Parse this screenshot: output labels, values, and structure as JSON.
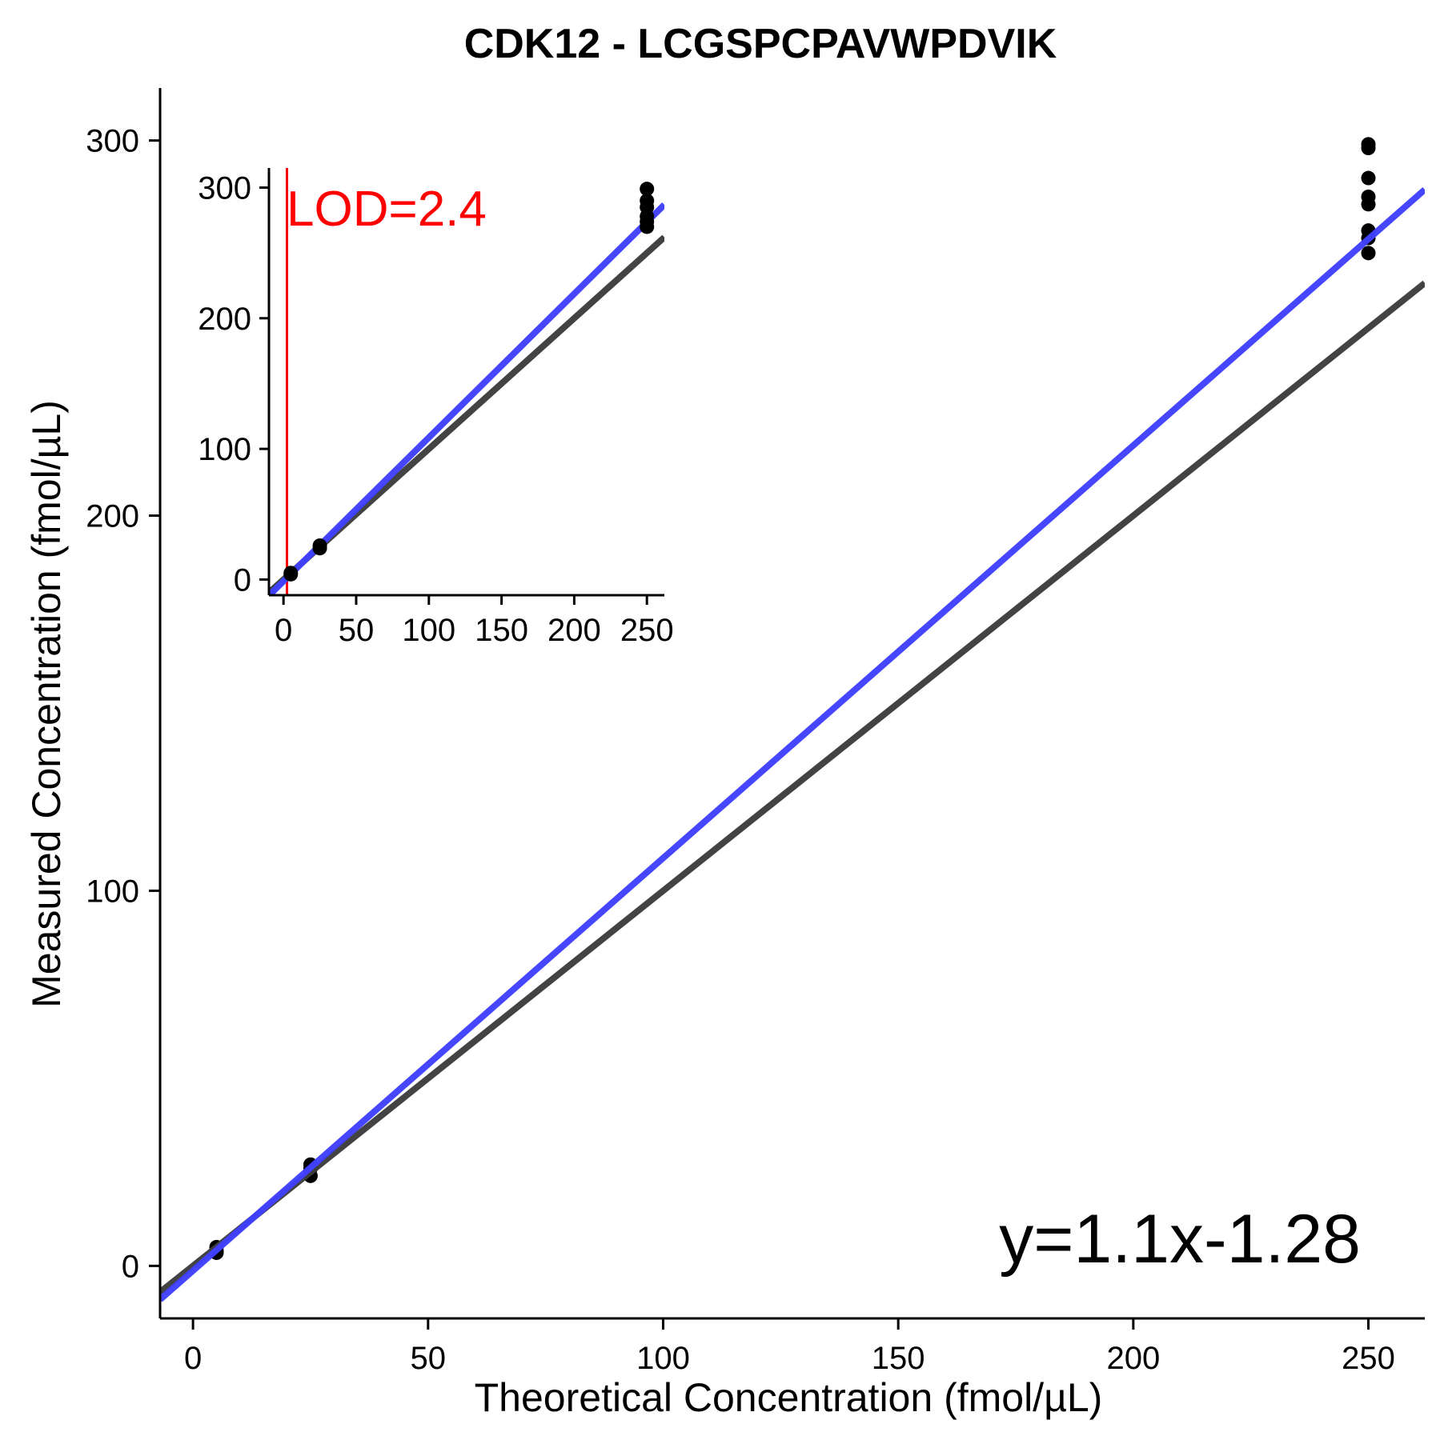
{
  "chart_data": [
    {
      "id": "main",
      "type": "scatter",
      "title": "CDK12 - LCGSPCPAVWPDVIK",
      "xlabel": "Theoretical Concentration (fmol/µL)",
      "ylabel": "Measured Concentration (fmol/µL)",
      "xlim": [
        -7,
        262
      ],
      "ylim": [
        -14,
        314
      ],
      "xticks": [
        0,
        50,
        100,
        150,
        200,
        250
      ],
      "yticks": [
        0,
        100,
        200,
        300
      ],
      "grid": false,
      "points": [
        {
          "x": 5,
          "y": 4
        },
        {
          "x": 5,
          "y": 5
        },
        {
          "x": 5,
          "y": 3.5
        },
        {
          "x": 25,
          "y": 27
        },
        {
          "x": 25,
          "y": 24
        },
        {
          "x": 25,
          "y": 26
        },
        {
          "x": 250,
          "y": 298
        },
        {
          "x": 250,
          "y": 299
        },
        {
          "x": 250,
          "y": 290
        },
        {
          "x": 250,
          "y": 285
        },
        {
          "x": 250,
          "y": 283
        },
        {
          "x": 250,
          "y": 276
        },
        {
          "x": 250,
          "y": 274
        },
        {
          "x": 250,
          "y": 270
        }
      ],
      "lines": [
        {
          "kind": "identity",
          "slope": 1.0,
          "intercept": 0.0,
          "color": "#3d3d3d"
        },
        {
          "kind": "fit",
          "slope": 1.1,
          "intercept": -1.28,
          "color": "#4040ff"
        }
      ],
      "equation": "y=1.1x-1.28"
    },
    {
      "id": "inset",
      "type": "scatter",
      "xlim": [
        -10,
        262
      ],
      "ylim": [
        -12,
        315
      ],
      "xticks": [
        0,
        50,
        100,
        150,
        200,
        250
      ],
      "yticks": [
        0,
        100,
        200,
        300
      ],
      "grid": false,
      "points": [
        {
          "x": 5,
          "y": 4
        },
        {
          "x": 5,
          "y": 5
        },
        {
          "x": 25,
          "y": 26
        },
        {
          "x": 25,
          "y": 24
        },
        {
          "x": 250,
          "y": 299
        },
        {
          "x": 250,
          "y": 290
        },
        {
          "x": 250,
          "y": 285
        },
        {
          "x": 250,
          "y": 278
        },
        {
          "x": 250,
          "y": 274
        },
        {
          "x": 250,
          "y": 270
        }
      ],
      "lines": [
        {
          "kind": "identity",
          "slope": 1.0,
          "intercept": 0.0,
          "color": "#3d3d3d"
        },
        {
          "kind": "fit",
          "slope": 1.1,
          "intercept": -1.28,
          "color": "#4040ff"
        }
      ],
      "lod_value": 2.4,
      "lod_label": "LOD=2.4",
      "lod_color": "#ff0000"
    }
  ]
}
